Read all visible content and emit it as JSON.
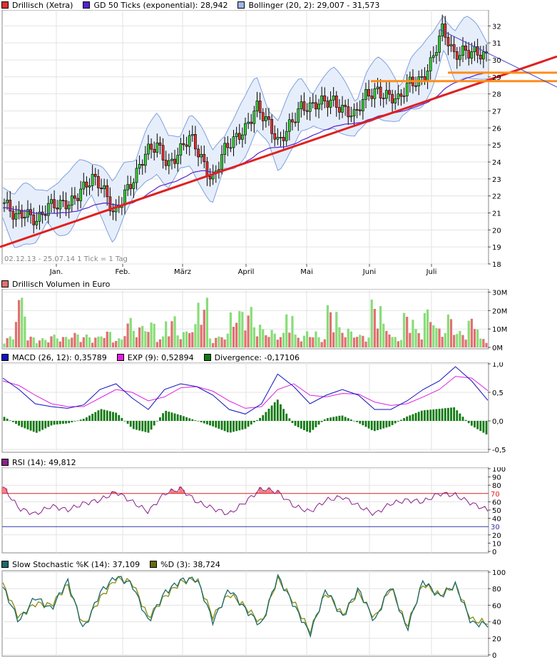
{
  "chart_data": [
    {
      "type": "candlestick",
      "legend": [
        {
          "label": "Drillisch (Xetra)",
          "color": "#e03030"
        },
        {
          "label": "GD 50 Ticks (exponential): 28,942",
          "color": "#5522cc"
        },
        {
          "label": "Bollinger (20, 2): 29,007 - 31,573",
          "color": "#9fb6e8"
        }
      ],
      "range_label": "02.12.13 - 25.07.14   1 Tick = 1 Tag",
      "xticks": [
        "Jan.",
        "Feb.",
        "März",
        "April",
        "Mai",
        "Juni",
        "Juli"
      ],
      "yticks": [
        "18",
        "19",
        "20",
        "21",
        "22",
        "23",
        "24",
        "25",
        "26",
        "27",
        "28",
        "29",
        "30",
        "31",
        "32"
      ],
      "ylim": [
        18,
        32.6
      ],
      "x": [
        "02.12.13",
        "25.07.14"
      ],
      "close_approx": [
        21.6,
        20.5,
        21.0,
        20.8,
        21.4,
        21.2,
        21.6,
        22.6,
        23.0,
        22.2,
        21.0,
        22.4,
        23.1,
        24.4,
        25.1,
        24.0,
        24.5,
        25.3,
        24.3,
        23.1,
        24.5,
        25.1,
        26.1,
        27.5,
        26.2,
        24.9,
        26.3,
        27.4,
        27.0,
        27.4,
        27.8,
        27.2,
        26.5,
        27.8,
        28.4,
        28.0,
        27.4,
        28.6,
        29.0,
        30.0,
        31.6,
        30.2,
        30.8,
        30.5,
        29.9
      ],
      "trendlines": [
        {
          "name": "support",
          "color": "#e02020",
          "from": [
            0,
            19.0
          ],
          "to": [
            1,
            30.2
          ]
        },
        {
          "name": "resistance",
          "color": "#ff8c1a",
          "value": 28.75
        },
        {
          "name": "resistance-2",
          "color": "#ff8c1a",
          "value": 29.25
        }
      ]
    },
    {
      "type": "bar",
      "legend": [
        {
          "label": "Drillisch Volumen in Euro",
          "color": "#e07070"
        }
      ],
      "yticks": [
        "0M",
        "10M",
        "20M",
        "30M"
      ],
      "ylim": [
        0,
        30
      ],
      "values_approx": [
        6,
        28,
        6,
        5,
        7,
        6,
        8,
        7,
        6,
        9,
        5,
        16,
        12,
        14,
        6,
        17,
        9,
        13,
        27,
        6,
        8,
        20,
        22,
        14,
        10,
        8,
        21,
        7,
        9,
        6,
        23,
        11,
        9,
        7,
        26,
        13,
        6,
        19,
        10,
        21,
        11,
        18,
        9,
        16,
        5
      ]
    },
    {
      "type": "line",
      "legend": [
        {
          "label": "MACD (26, 12): 0,35789",
          "color": "#1010c0"
        },
        {
          "label": "EXP (9): 0,52894",
          "color": "#e020e0"
        },
        {
          "label": "Divergence: -0,17106",
          "color": "#127a12"
        }
      ],
      "yticks": [
        "-0,5",
        "0,0",
        "0,5",
        "1,0"
      ],
      "ylim": [
        -0.5,
        1.0
      ],
      "macd_approx": [
        0.75,
        0.55,
        0.3,
        0.25,
        0.22,
        0.28,
        0.55,
        0.65,
        0.4,
        0.2,
        0.55,
        0.65,
        0.6,
        0.45,
        0.2,
        0.12,
        0.3,
        0.82,
        0.6,
        0.3,
        0.45,
        0.55,
        0.45,
        0.2,
        0.2,
        0.35,
        0.55,
        0.7,
        0.95,
        0.7,
        0.36
      ],
      "signal_approx": [
        0.7,
        0.62,
        0.45,
        0.3,
        0.25,
        0.25,
        0.4,
        0.55,
        0.5,
        0.35,
        0.42,
        0.58,
        0.6,
        0.52,
        0.35,
        0.22,
        0.25,
        0.55,
        0.65,
        0.45,
        0.42,
        0.48,
        0.47,
        0.33,
        0.27,
        0.3,
        0.42,
        0.55,
        0.78,
        0.75,
        0.53
      ]
    },
    {
      "type": "line",
      "legend": [
        {
          "label": "RSI (14): 49,812",
          "color": "#882288"
        }
      ],
      "yticks": [
        "0",
        "10",
        "20",
        "30",
        "40",
        "50",
        "60",
        "70",
        "80",
        "90",
        "100"
      ],
      "ylim": [
        0,
        100
      ],
      "bands": [
        {
          "label": "70",
          "value": 70,
          "color": "#e02020"
        },
        {
          "label": "30",
          "value": 30,
          "color": "#3333aa"
        }
      ],
      "values_approx": [
        78,
        52,
        45,
        55,
        50,
        58,
        62,
        72,
        60,
        48,
        70,
        76,
        60,
        52,
        45,
        60,
        76,
        72,
        55,
        48,
        62,
        66,
        55,
        45,
        58,
        62,
        60,
        70,
        68,
        58,
        50
      ]
    },
    {
      "type": "line",
      "legend": [
        {
          "label": "Slow Stochastic %K (14): 37,109",
          "color": "#1a6a6a"
        },
        {
          "label": "%D (3): 38,724",
          "color": "#6a6a10"
        }
      ],
      "yticks": [
        "0",
        "20",
        "40",
        "60",
        "80",
        "100"
      ],
      "ylim": [
        0,
        100
      ],
      "k_approx": [
        82,
        40,
        70,
        55,
        90,
        30,
        75,
        95,
        85,
        40,
        75,
        90,
        92,
        40,
        80,
        55,
        35,
        95,
        60,
        25,
        80,
        45,
        80,
        40,
        85,
        30,
        90,
        70,
        85,
        38,
        37
      ],
      "d_approx": [
        85,
        45,
        62,
        60,
        85,
        35,
        68,
        92,
        88,
        45,
        70,
        88,
        92,
        46,
        74,
        58,
        38,
        92,
        64,
        28,
        76,
        48,
        76,
        44,
        82,
        34,
        86,
        72,
        84,
        42,
        39
      ]
    }
  ]
}
